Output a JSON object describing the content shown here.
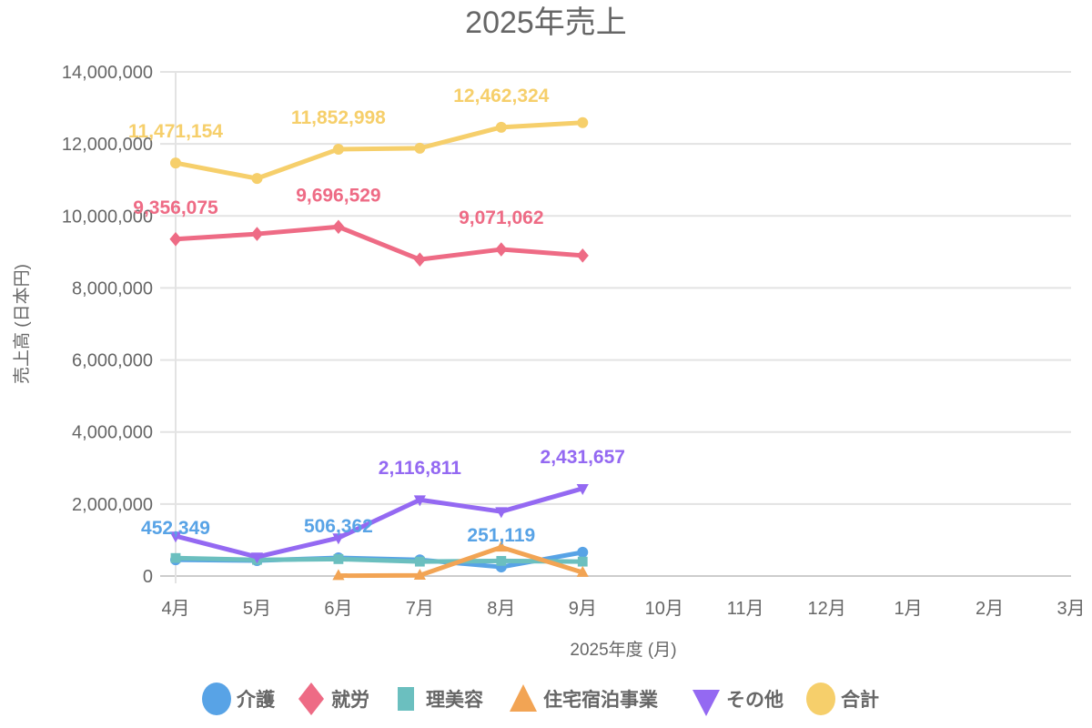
{
  "chart_data": {
    "type": "line",
    "title": "2025年売上",
    "xlabel": "2025年度 (月)",
    "ylabel": "売上高 (日本円)",
    "ylim": [
      0,
      14000000
    ],
    "yticks": [
      0,
      2000000,
      4000000,
      6000000,
      8000000,
      10000000,
      12000000,
      14000000
    ],
    "ytick_labels": [
      "0",
      "2,000,000",
      "4,000,000",
      "6,000,000",
      "8,000,000",
      "10,000,000",
      "12,000,000",
      "14,000,000"
    ],
    "categories": [
      "4月",
      "5月",
      "6月",
      "7月",
      "8月",
      "9月",
      "10月",
      "11月",
      "12月",
      "1月",
      "2月",
      "3月"
    ],
    "grid": "horizontal",
    "legend_position": "bottom",
    "series": [
      {
        "name": "介護",
        "color": "#58a3e6",
        "marker": "circle",
        "values": [
          452349,
          430000,
          506362,
          450000,
          251119,
          660000,
          null,
          null,
          null,
          null,
          null,
          null
        ],
        "labels": {
          "0": "452,349",
          "2": "506,362",
          "4": "251,119"
        }
      },
      {
        "name": "就労",
        "color": "#ee6b85",
        "marker": "diamond",
        "values": [
          9356075,
          9500000,
          9696529,
          8790000,
          9071062,
          8900000,
          null,
          null,
          null,
          null,
          null,
          null
        ],
        "labels": {
          "0": "9,356,075",
          "2": "9,696,529",
          "4": "9,071,062"
        }
      },
      {
        "name": "理美容",
        "color": "#6bbfbf",
        "marker": "square",
        "values": [
          500000,
          450000,
          470000,
          400000,
          420000,
          400000,
          null,
          null,
          null,
          null,
          null,
          null
        ],
        "labels": {}
      },
      {
        "name": "住宅宿泊事業",
        "color": "#f2a454",
        "marker": "triangle",
        "values": [
          null,
          null,
          10000,
          20000,
          800000,
          100000,
          null,
          null,
          null,
          null,
          null,
          null
        ],
        "labels": {}
      },
      {
        "name": "その他",
        "color": "#9469f2",
        "marker": "triangle-down",
        "values": [
          1110000,
          530000,
          1060000,
          2116811,
          1790000,
          2431657,
          null,
          null,
          null,
          null,
          null,
          null
        ],
        "labels": {
          "3": "2,116,811",
          "5": "2,431,657"
        }
      },
      {
        "name": "合計",
        "color": "#f6cf6b",
        "marker": "circle",
        "values": [
          11471154,
          11040000,
          11852998,
          11880000,
          12462324,
          12590000,
          null,
          null,
          null,
          null,
          null,
          null
        ],
        "labels": {
          "0": "11,471,154",
          "2": "11,852,998",
          "4": "12,462,324"
        }
      }
    ]
  }
}
